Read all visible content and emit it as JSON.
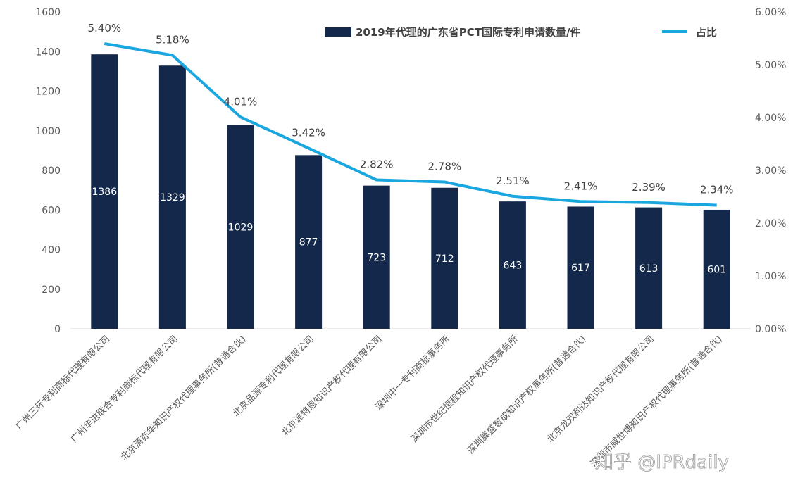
{
  "chart_data": {
    "type": "bar",
    "categories": [
      "广州三环专利商标代理有限公司",
      "广州华进联合专利商标代理有限公司",
      "北京清亦华知识产权代理事务所(普通合伙)",
      "北京品源专利代理有限公司",
      "北京派特恩知识产权代理有限公司",
      "深圳中一专利商标事务所",
      "深圳市世纪恒程知识产权代理事务所",
      "深圳翼盛智成知识产权事务所(普通合伙)",
      "北京龙双利达知识产权代理有限公司",
      "深圳市威世博知识产权代理事务所(普通合伙)"
    ],
    "series": [
      {
        "name": "2019年代理的广东省PCT国际专利申请数量/件",
        "type": "bar",
        "axis": "left",
        "values": [
          1386,
          1329,
          1029,
          877,
          723,
          712,
          643,
          617,
          613,
          601
        ],
        "labels": [
          "1386",
          "1329",
          "1029",
          "877",
          "723",
          "712",
          "643",
          "617",
          "613",
          "601"
        ],
        "color": "#13284a"
      },
      {
        "name": "占比",
        "type": "line",
        "axis": "right",
        "values": [
          5.4,
          5.18,
          4.01,
          3.42,
          2.82,
          2.78,
          2.51,
          2.41,
          2.39,
          2.34
        ],
        "labels": [
          "5.40%",
          "5.18%",
          "4.01%",
          "3.42%",
          "2.82%",
          "2.78%",
          "2.51%",
          "2.41%",
          "2.39%",
          "2.34%"
        ],
        "color": "#1aa7e0"
      }
    ],
    "ylim": [
      0,
      1600
    ],
    "yticks": [
      "0",
      "200",
      "400",
      "600",
      "800",
      "1000",
      "1200",
      "1400",
      "1600"
    ],
    "y2lim": [
      0,
      6
    ],
    "y2ticks": [
      "0.00%",
      "1.00%",
      "2.00%",
      "3.00%",
      "4.00%",
      "5.00%",
      "6.00%"
    ],
    "grid": false,
    "legend_position": "top-right"
  },
  "watermark": "知乎 @IPRdaily"
}
